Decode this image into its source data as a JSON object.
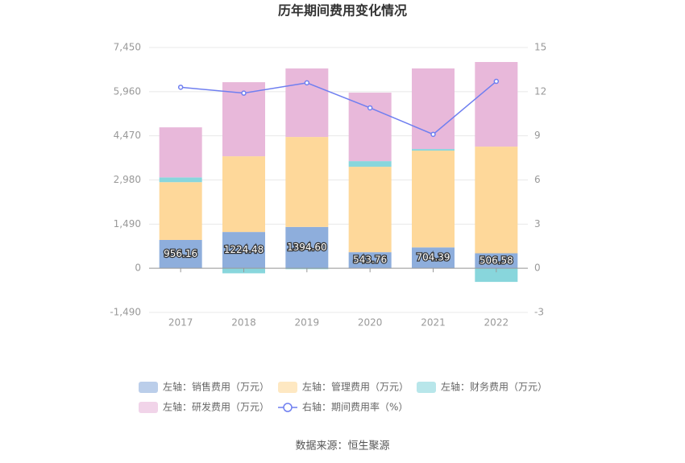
{
  "chart_data": {
    "type": "stacked-bar-line",
    "title": "历年期间费用变化情况",
    "categories": [
      "2017",
      "2018",
      "2019",
      "2020",
      "2021",
      "2022"
    ],
    "series": [
      {
        "name": "左轴：销售费用（万元）",
        "color": "#8eaedc",
        "values": [
          956.16,
          1224.48,
          1394.6,
          543.76,
          704.39,
          506.58
        ],
        "value_labels": [
          "956.16",
          "1224.48",
          "1394.60",
          "543.76",
          "704.39",
          "506.58"
        ]
      },
      {
        "name": "左轴：管理费用（万元）",
        "color": "#fed89a",
        "values": [
          1950,
          2555,
          3037,
          2882,
          3266,
          3599
        ]
      },
      {
        "name": "左轴：财务费用（万元）",
        "color": "#88d6dc",
        "values": [
          160,
          -170,
          -30,
          190,
          54,
          -460
        ]
      },
      {
        "name": "左轴：研发费用（万元）",
        "color": "#e8b8da",
        "values": [
          1690,
          2500,
          2311,
          2311,
          2719,
          2855
        ]
      },
      {
        "name": "右轴：期间费用率（%）",
        "color": "#6f7ff0",
        "axis": "y2",
        "values": [
          12.3,
          11.9,
          12.6,
          10.9,
          9.1,
          12.7
        ]
      }
    ],
    "ylim": [
      -1490,
      7450
    ],
    "yticks": [
      {
        "value": -1490,
        "label": "-1,490"
      },
      0,
      {
        "value": 1490,
        "label": "1,490"
      },
      {
        "value": 2980,
        "label": "2,980"
      },
      {
        "value": 4470,
        "label": "4,470"
      },
      {
        "value": 5960,
        "label": "5,960"
      },
      {
        "value": 7450,
        "label": "7,450"
      }
    ],
    "y2lim": [
      -3,
      15
    ],
    "y2ticks": [
      -3,
      0,
      3,
      6,
      9,
      12,
      15
    ],
    "grid": true,
    "source": "数据来源：恒生聚源"
  }
}
